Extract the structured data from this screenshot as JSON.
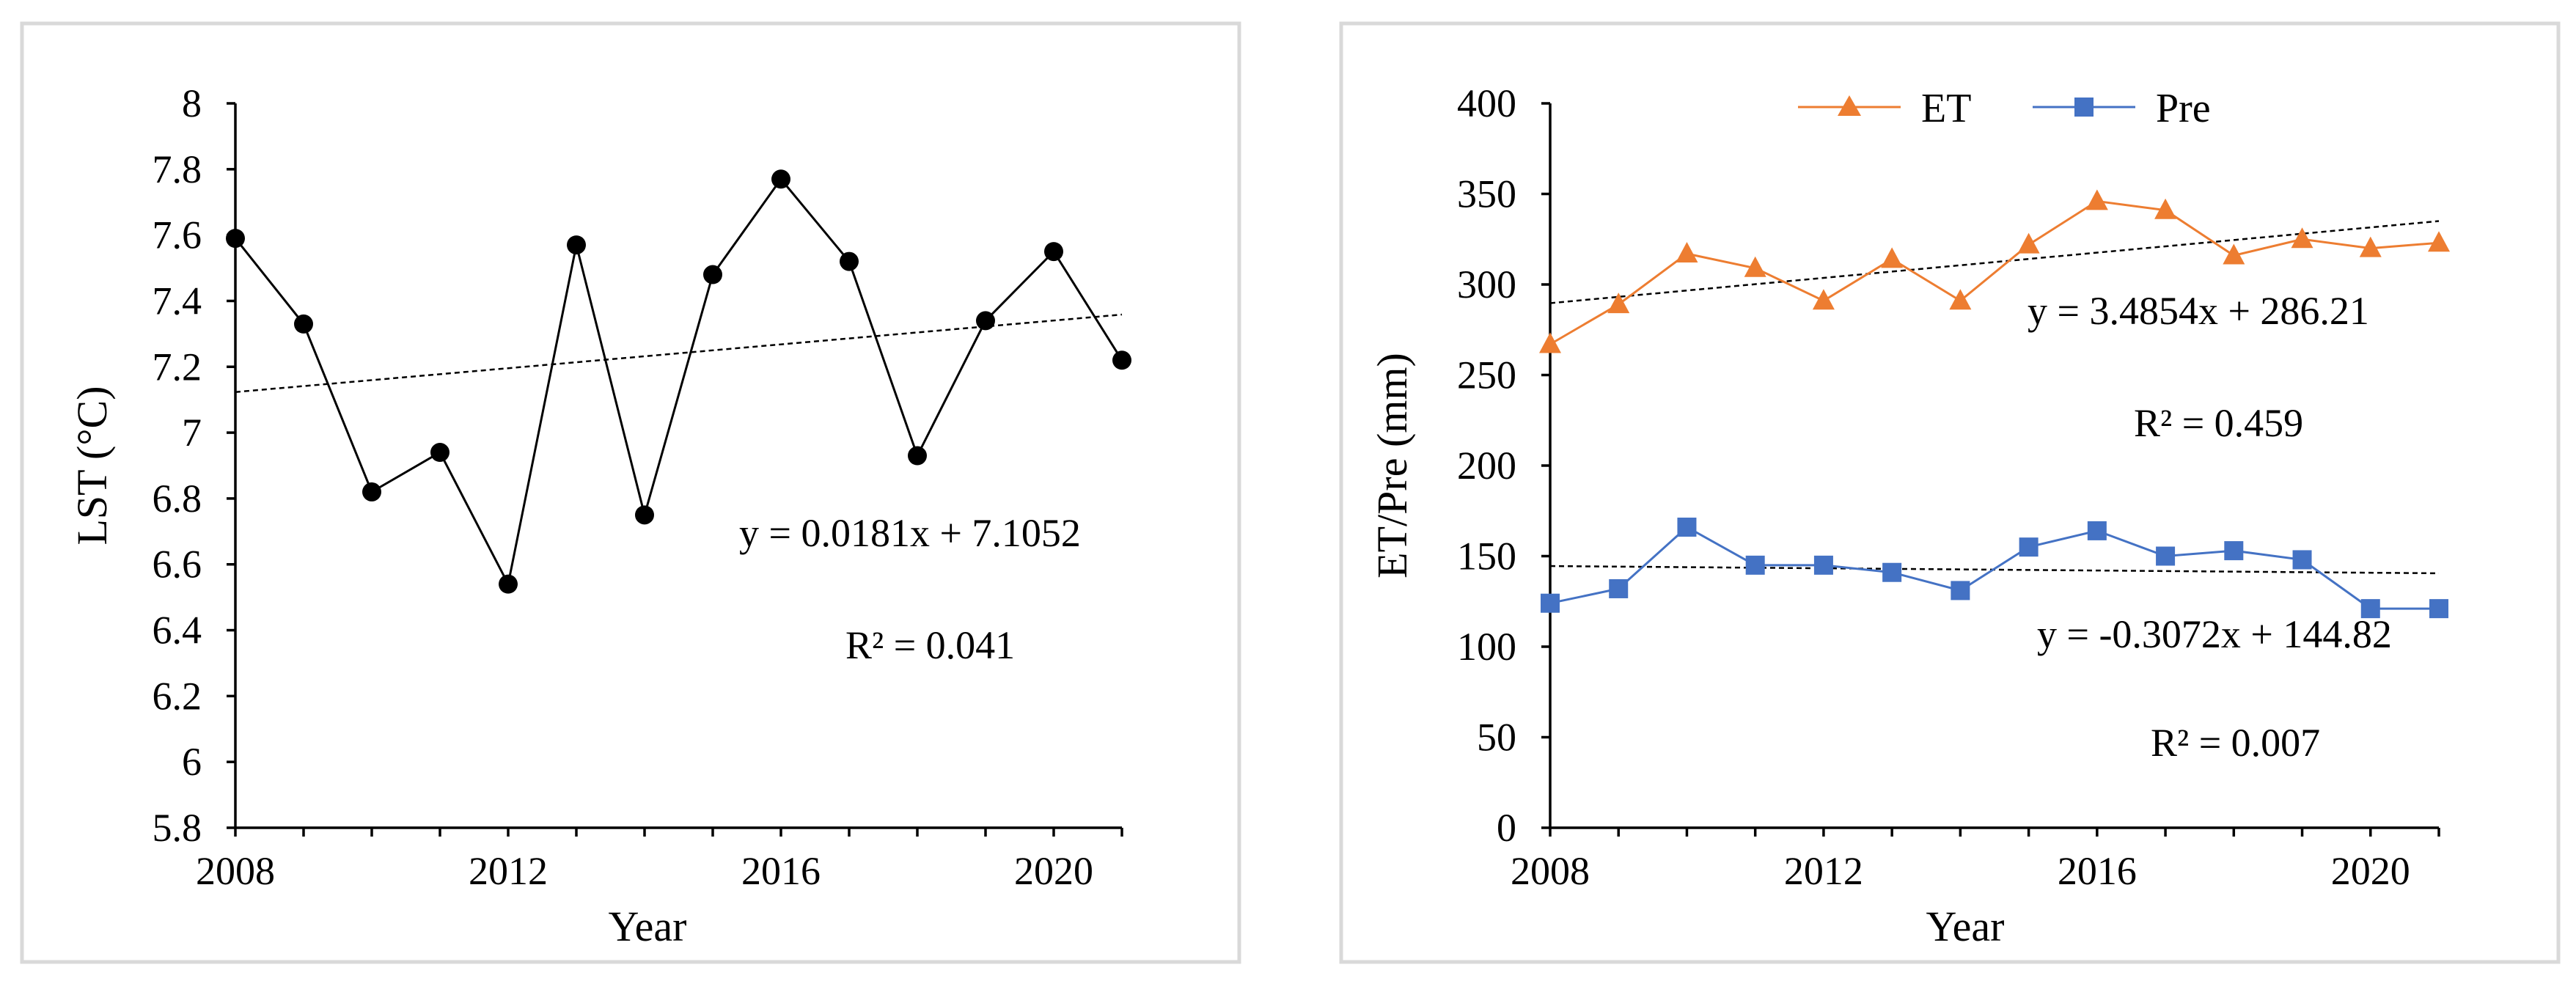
{
  "chart_data": [
    {
      "type": "line",
      "title": "",
      "xlabel": "Year",
      "ylabel": "LST (°C)",
      "xlim": [
        2008,
        2021
      ],
      "ylim": [
        5.8,
        8
      ],
      "x_ticks": [
        2008,
        2012,
        2016,
        2020
      ],
      "x_tick_labels": [
        "2008",
        "2012",
        "2016",
        "2020"
      ],
      "y_ticks": [
        5.8,
        6,
        6.2,
        6.4,
        6.6,
        6.8,
        7,
        7.2,
        7.4,
        7.6,
        7.8,
        8
      ],
      "y_tick_labels": [
        "5.8",
        "6",
        "6.2",
        "6.4",
        "6.6",
        "6.8",
        "7",
        "7.2",
        "7.4",
        "7.6",
        "7.8",
        "8"
      ],
      "grid": false,
      "legend": "none",
      "series": [
        {
          "name": "LST",
          "color": "#000000",
          "marker": "circle",
          "x": [
            2008,
            2009,
            2010,
            2011,
            2012,
            2013,
            2014,
            2015,
            2016,
            2017,
            2018,
            2019,
            2020,
            2021
          ],
          "values": [
            7.59,
            7.33,
            6.82,
            6.94,
            6.54,
            7.57,
            6.75,
            7.48,
            7.77,
            7.52,
            6.93,
            7.34,
            7.55,
            7.22
          ]
        }
      ],
      "trendlines": [
        {
          "slope": 0.0181,
          "intercept": 7.1052,
          "equation": "y = 0.0181x + 7.1052",
          "r2": "R² = 0.041",
          "color": "#000000"
        }
      ]
    },
    {
      "type": "line",
      "title": "",
      "xlabel": "Year",
      "ylabel": "ET/Pre (mm)",
      "xlim": [
        2008,
        2021
      ],
      "ylim": [
        0,
        400
      ],
      "x_ticks": [
        2008,
        2012,
        2016,
        2020
      ],
      "x_tick_labels": [
        "2008",
        "2012",
        "2016",
        "2020"
      ],
      "y_ticks": [
        0,
        50,
        100,
        150,
        200,
        250,
        300,
        350,
        400
      ],
      "y_tick_labels": [
        "0",
        "50",
        "100",
        "150",
        "200",
        "250",
        "300",
        "350",
        "400"
      ],
      "grid": false,
      "legend": "top-center",
      "series": [
        {
          "name": "ET",
          "color": "#ED7D31",
          "marker": "triangle",
          "x": [
            2008,
            2009,
            2010,
            2011,
            2012,
            2013,
            2014,
            2015,
            2016,
            2017,
            2018,
            2019,
            2020,
            2021
          ],
          "values": [
            267,
            289,
            317,
            309,
            291,
            314,
            291,
            322,
            346,
            341,
            316,
            325,
            320,
            323
          ]
        },
        {
          "name": "Pre",
          "color": "#4472C4",
          "marker": "square",
          "x": [
            2008,
            2009,
            2010,
            2011,
            2012,
            2013,
            2014,
            2015,
            2016,
            2017,
            2018,
            2019,
            2020,
            2021
          ],
          "values": [
            124,
            132,
            166,
            145,
            145,
            141,
            131,
            155,
            164,
            150,
            153,
            148,
            121,
            121
          ]
        }
      ],
      "trendlines": [
        {
          "slope": 3.4854,
          "intercept": 286.21,
          "equation": "y = 3.4854x + 286.21",
          "r2": "R² = 0.459",
          "color": "#000000"
        },
        {
          "slope": -0.3072,
          "intercept": 144.82,
          "equation": "y = -0.3072x + 144.82",
          "r2": "R² = 0.007",
          "color": "#000000"
        }
      ]
    }
  ]
}
